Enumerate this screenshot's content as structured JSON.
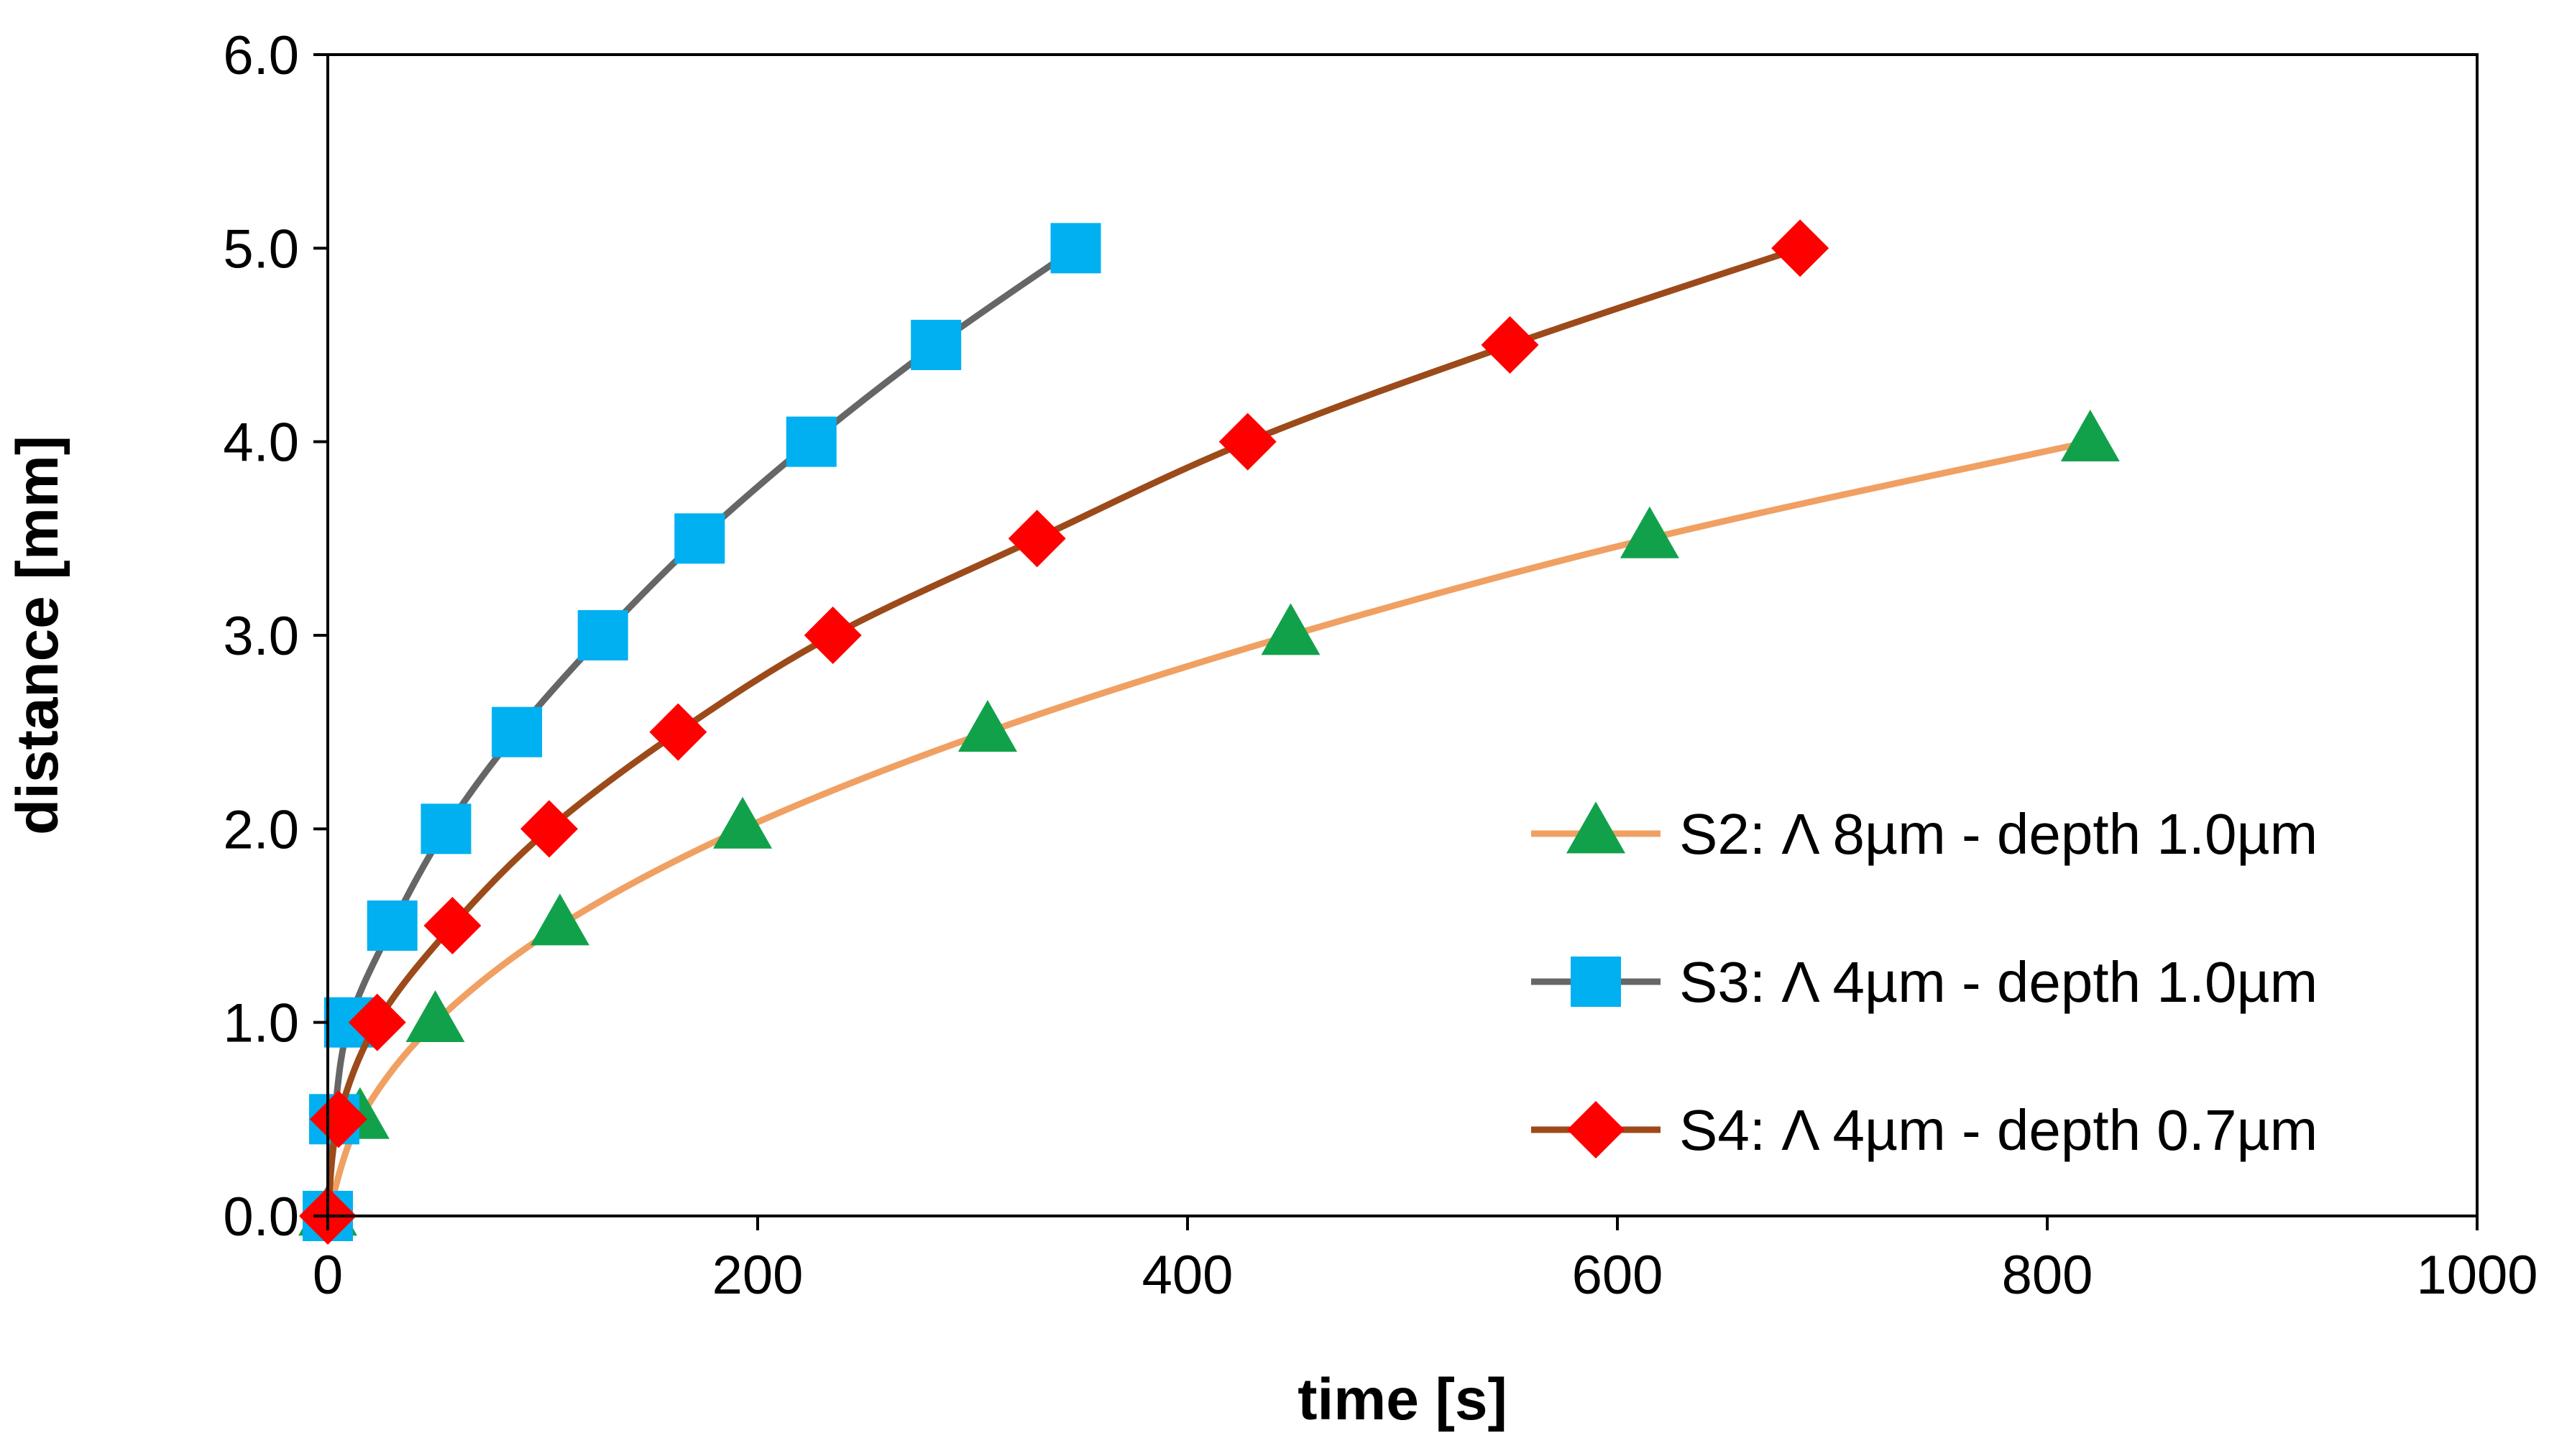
{
  "chart_data": {
    "type": "line",
    "title": "",
    "xlabel": "time [s]",
    "ylabel": "distance [mm]",
    "xlim": [
      0,
      1000
    ],
    "ylim": [
      0,
      6
    ],
    "xticks": [
      0,
      200,
      400,
      600,
      800,
      1000
    ],
    "yticks": [
      0,
      1,
      2,
      3,
      4,
      5,
      6
    ],
    "xtick_labels": [
      "0",
      "200",
      "400",
      "600",
      "800",
      "1000"
    ],
    "ytick_labels": [
      "0.0",
      "1.0",
      "2.0",
      "3.0",
      "4.0",
      "5.0",
      "6.0"
    ],
    "grid": false,
    "legend_position": "lower-right",
    "series": [
      {
        "name": "S2: Λ 8µm - depth 1.0µm",
        "line_color": "#F0A062",
        "marker": "triangle",
        "marker_color": "#12A14B",
        "x": [
          0,
          15,
          50,
          108,
          193,
          307,
          448,
          615,
          820
        ],
        "y": [
          0,
          0.5,
          1.0,
          1.5,
          2.0,
          2.5,
          3.0,
          3.5,
          4.0
        ]
      },
      {
        "name": "S3: Λ 4µm - depth 1.0µm",
        "line_color": "#666666",
        "marker": "square",
        "marker_color": "#00B0F0",
        "x": [
          0,
          3,
          10,
          30,
          55,
          88,
          128,
          173,
          225,
          283,
          348
        ],
        "y": [
          0,
          0.5,
          1.0,
          1.5,
          2.0,
          2.5,
          3.0,
          3.5,
          4.0,
          4.5,
          5.0
        ]
      },
      {
        "name": "S4: Λ 4µm - depth 0.7µm",
        "line_color": "#9C4A1A",
        "marker": "diamond",
        "marker_color": "#FF0000",
        "x": [
          0,
          5,
          23,
          58,
          103,
          163,
          235,
          330,
          428,
          550,
          685
        ],
        "y": [
          0,
          0.5,
          1.0,
          1.5,
          2.0,
          2.5,
          3.0,
          3.5,
          4.0,
          4.5,
          5.0
        ]
      }
    ]
  }
}
